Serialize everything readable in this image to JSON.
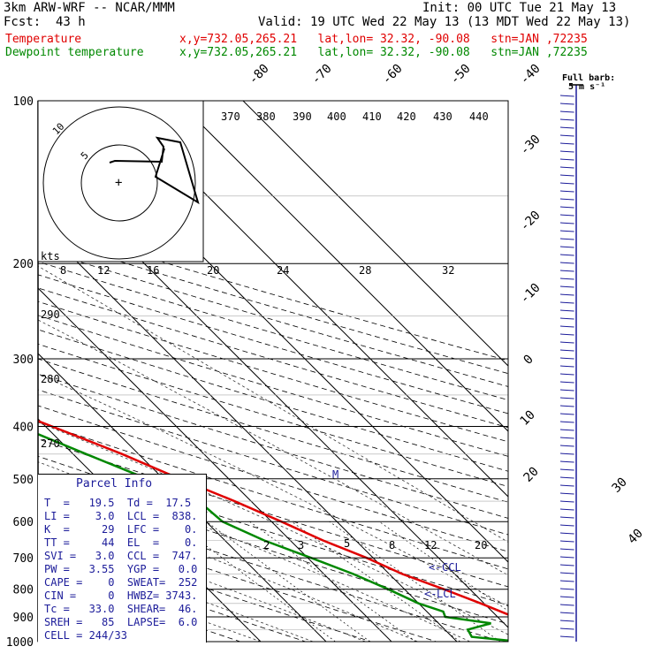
{
  "header": {
    "model": "3km ARW-WRF -- NCAR/MMM",
    "init": "Init: 00 UTC Tue 21 May 13",
    "fcst": "Fcst:  43 h",
    "valid": "Valid: 19 UTC Wed 22 May 13 (13 MDT Wed 22 May 13)",
    "temp_label": "Temperature",
    "dew_label": "Dewpoint temperature",
    "loc_line": "x,y=732.05,265.21   lat,lon= 32.32, -90.08   stn=JAN ,72235"
  },
  "barb_key": {
    "line1": "Full barb:",
    "line2": "5 m s⁻¹"
  },
  "hodograph": {
    "units": "kts",
    "ring_labels": [
      "5",
      "10"
    ]
  },
  "parcel_info": {
    "title": "Parcel Info",
    "lines": [
      "T  =   19.5  Td =  17.5",
      "LI =    3.0  LCL =  838.",
      "K  =     29  LFC =    0.",
      "TT =     44  EL  =    0.",
      "SVI =   3.0  CCL =  747.",
      "PW =   3.55  YGP =   0.0",
      "CAPE =    0  SWEAT=  252",
      "CIN =     0  HWBZ= 3743.",
      "Tc =   33.0  SHEAR=  46.",
      "SREH =   85  LAPSE=  6.0",
      "CELL = 244/33"
    ]
  },
  "markers": {
    "ccl": "CCL",
    "lcl": "LCL"
  },
  "colors": {
    "temperature": "#e00000",
    "dewpoint": "#008800",
    "text_blue": "#1c1c9a",
    "axis": "#000000"
  },
  "chart_data": {
    "type": "line",
    "title": "",
    "ylabel": "",
    "xlabel": "",
    "y_scale": "log",
    "y_ticks": [
      100,
      200,
      300,
      400,
      500,
      600,
      700,
      800,
      900,
      1000
    ],
    "skew_temperature_labels": [
      "-80",
      "-70",
      "-60",
      "-50",
      "-40",
      "-30",
      "-20",
      "-10",
      "0",
      "10",
      "20",
      "30",
      "40"
    ],
    "mixing_ratio_labels_top": [
      "8",
      "12",
      "16",
      "20",
      "24",
      "28",
      "32"
    ],
    "mixing_ratio_labels_bottom": [
      "2",
      "3",
      "5",
      "8",
      "12",
      "20"
    ],
    "theta_labels": [
      "370",
      "380",
      "390",
      "400",
      "410",
      "420",
      "430",
      "440"
    ],
    "theta_side_labels": [
      "290",
      "280",
      "270"
    ],
    "series": [
      {
        "name": "Temperature",
        "points": [
          [
            1000,
            24.5
          ],
          [
            975,
            30.5
          ],
          [
            950,
            28.5
          ],
          [
            925,
            25.0
          ],
          [
            900,
            22.5
          ],
          [
            850,
            19.5
          ],
          [
            800,
            16.0
          ],
          [
            750,
            12.0
          ],
          [
            700,
            9.0
          ],
          [
            650,
            5.0
          ],
          [
            600,
            1.5
          ],
          [
            550,
            -2.5
          ],
          [
            500,
            -7.5
          ],
          [
            450,
            -12.5
          ],
          [
            400,
            -19.0
          ],
          [
            350,
            -26.5
          ],
          [
            300,
            -35.0
          ],
          [
            250,
            -45.0
          ],
          [
            200,
            -56.0
          ],
          [
            180,
            -61.0
          ],
          [
            170,
            -61.0
          ],
          [
            160,
            -57.0
          ],
          [
            150,
            -54.5
          ],
          [
            140,
            -53.5
          ],
          [
            130,
            -51.0
          ],
          [
            120,
            -48.0
          ],
          [
            110,
            -44.0
          ],
          [
            100,
            -41.0
          ]
        ]
      },
      {
        "name": "Dewpoint temperature",
        "points": [
          [
            1000,
            19.5
          ],
          [
            980,
            13.0
          ],
          [
            950,
            13.5
          ],
          [
            925,
            18.0
          ],
          [
            900,
            12.0
          ],
          [
            880,
            12.5
          ],
          [
            850,
            10.0
          ],
          [
            800,
            7.5
          ],
          [
            750,
            4.5
          ],
          [
            700,
            0.5
          ],
          [
            650,
            -4.0
          ],
          [
            600,
            -7.5
          ],
          [
            550,
            -8.0
          ],
          [
            500,
            -12.5
          ],
          [
            450,
            -18.0
          ],
          [
            400,
            -24.0
          ],
          [
            350,
            -31.5
          ],
          [
            300,
            -40.0
          ],
          [
            250,
            -51.0
          ],
          [
            200,
            -62.0
          ],
          [
            180,
            -66.0
          ],
          [
            170,
            -67.0
          ],
          [
            160,
            -66.5
          ],
          [
            150,
            -67.5
          ],
          [
            140,
            -68.0
          ],
          [
            130,
            -67.5
          ],
          [
            120,
            -68.0
          ],
          [
            110,
            -70.0
          ],
          [
            100,
            -71.0
          ]
        ]
      }
    ]
  }
}
